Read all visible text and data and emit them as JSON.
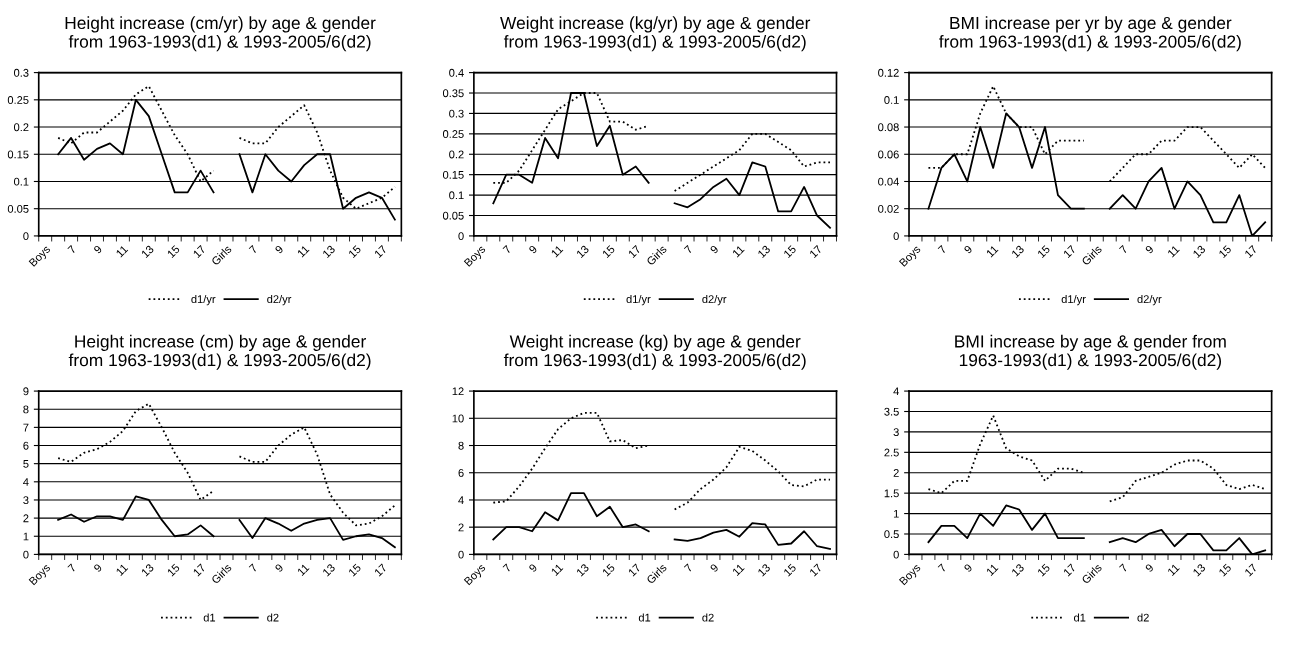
{
  "chart_data": [
    {
      "type": "line",
      "title": "Height increase (cm/yr) by age & gender\nfrom 1963-1993(d1) & 1993-2005/6(d2)",
      "categories": [
        "Boys",
        null,
        "7",
        null,
        "9",
        null,
        "11",
        null,
        "13",
        null,
        "15",
        null,
        "17",
        null,
        "Girls",
        null,
        "7",
        null,
        "9",
        null,
        "11",
        null,
        "13",
        null,
        "15",
        null,
        "17",
        null
      ],
      "series": [
        {
          "name": "d1/yr",
          "color": "#000000",
          "line_style": "dotted",
          "values": [
            null,
            0.18,
            0.17,
            0.19,
            0.19,
            0.21,
            0.23,
            0.26,
            0.275,
            0.23,
            0.185,
            0.15,
            0.1,
            0.12,
            null,
            0.18,
            0.17,
            0.17,
            0.2,
            0.22,
            0.24,
            0.19,
            0.12,
            0.07,
            0.05,
            0.06,
            0.07,
            0.09
          ]
        },
        {
          "name": "d2/yr",
          "color": "#000000",
          "line_style": "solid",
          "values": [
            null,
            0.15,
            0.18,
            0.14,
            0.16,
            0.17,
            0.15,
            0.25,
            0.22,
            0.15,
            0.08,
            0.08,
            0.12,
            0.08,
            null,
            0.15,
            0.08,
            0.15,
            0.12,
            0.1,
            0.13,
            0.15,
            0.15,
            0.05,
            0.07,
            0.08,
            0.07,
            0.03
          ]
        }
      ],
      "ylim": [
        0,
        0.3
      ],
      "yticks": [
        0,
        0.05,
        0.1,
        0.15,
        0.2,
        0.25,
        0.3
      ],
      "grid": "y",
      "legend": "bottom",
      "marker": "none"
    },
    {
      "type": "line",
      "title": "Weight increase (kg/yr) by age & gender\nfrom 1963-1993(d1) & 1993-2005/6(d2)",
      "categories": [
        "Boys",
        null,
        "7",
        null,
        "9",
        null,
        "11",
        null,
        "13",
        null,
        "15",
        null,
        "17",
        null,
        "Girls",
        null,
        "7",
        null,
        "9",
        null,
        "11",
        null,
        "13",
        null,
        "15",
        null,
        "17",
        null
      ],
      "series": [
        {
          "name": "d1/yr",
          "color": "#000000",
          "line_style": "dotted",
          "values": [
            null,
            0.13,
            0.13,
            0.16,
            0.21,
            0.26,
            0.31,
            0.33,
            0.35,
            0.35,
            0.28,
            0.28,
            0.26,
            0.27,
            null,
            0.11,
            0.13,
            0.15,
            0.17,
            0.19,
            0.21,
            0.25,
            0.25,
            0.23,
            0.21,
            0.17,
            0.18,
            0.18
          ]
        },
        {
          "name": "d2/yr",
          "color": "#000000",
          "line_style": "solid",
          "values": [
            null,
            0.08,
            0.15,
            0.15,
            0.13,
            0.24,
            0.19,
            0.35,
            0.35,
            0.22,
            0.27,
            0.15,
            0.17,
            0.13,
            null,
            0.08,
            0.07,
            0.09,
            0.12,
            0.14,
            0.1,
            0.18,
            0.17,
            0.06,
            0.06,
            0.12,
            0.05,
            0.02
          ]
        }
      ],
      "ylim": [
        0,
        0.4
      ],
      "yticks": [
        0,
        0.05,
        0.1,
        0.15,
        0.2,
        0.25,
        0.3,
        0.35,
        0.4
      ],
      "grid": "y",
      "legend": "bottom",
      "marker": "none"
    },
    {
      "type": "line",
      "title": "BMI increase per yr by age & gender\nfrom 1963-1993(d1) & 1993-2005/6(d2)",
      "categories": [
        "Boys",
        null,
        "7",
        null,
        "9",
        null,
        "11",
        null,
        "13",
        null,
        "15",
        null,
        "17",
        null,
        "Girls",
        null,
        "7",
        null,
        "9",
        null,
        "11",
        null,
        "13",
        null,
        "15",
        null,
        "17",
        null
      ],
      "series": [
        {
          "name": "d1/yr",
          "color": "#000000",
          "line_style": "dotted",
          "values": [
            null,
            0.05,
            0.05,
            0.06,
            0.06,
            0.09,
            0.11,
            0.09,
            0.08,
            0.08,
            0.06,
            0.07,
            0.07,
            0.07,
            null,
            0.04,
            0.05,
            0.06,
            0.06,
            0.07,
            0.07,
            0.08,
            0.08,
            0.07,
            0.06,
            0.05,
            0.06,
            0.05
          ]
        },
        {
          "name": "d2/yr",
          "color": "#000000",
          "line_style": "solid",
          "values": [
            null,
            0.02,
            0.05,
            0.06,
            0.04,
            0.08,
            0.05,
            0.09,
            0.08,
            0.05,
            0.08,
            0.03,
            0.02,
            0.02,
            null,
            0.02,
            0.03,
            0.02,
            0.04,
            0.05,
            0.02,
            0.04,
            0.03,
            0.01,
            0.01,
            0.03,
            0,
            0.01
          ]
        }
      ],
      "ylim": [
        0,
        0.12
      ],
      "yticks": [
        0,
        0.02,
        0.04,
        0.06,
        0.08,
        0.1,
        0.12
      ],
      "grid": "y",
      "legend": "bottom",
      "marker": "none"
    },
    {
      "type": "line",
      "title": "Height increase (cm) by age & gender\nfrom 1963-1993(d1) & 1993-2005/6(d2)",
      "categories": [
        "Boys",
        null,
        "7",
        null,
        "9",
        null,
        "11",
        null,
        "13",
        null,
        "15",
        null,
        "17",
        null,
        "Girls",
        null,
        "7",
        null,
        "9",
        null,
        "11",
        null,
        "13",
        null,
        "15",
        null,
        "17",
        null
      ],
      "series": [
        {
          "name": "d1",
          "color": "#000000",
          "line_style": "dotted",
          "values": [
            null,
            5.3,
            5.1,
            5.6,
            5.8,
            6.2,
            6.8,
            7.9,
            8.3,
            7.0,
            5.6,
            4.5,
            3.0,
            3.5,
            null,
            5.4,
            5.1,
            5.1,
            6.0,
            6.6,
            7.0,
            5.5,
            3.3,
            2.3,
            1.6,
            1.7,
            2.1,
            2.7
          ]
        },
        {
          "name": "d2",
          "color": "#000000",
          "line_style": "solid",
          "values": [
            null,
            1.9,
            2.2,
            1.8,
            2.1,
            2.1,
            1.9,
            3.2,
            3.0,
            1.9,
            1.0,
            1.1,
            1.6,
            1.0,
            null,
            1.9,
            0.9,
            2.0,
            1.7,
            1.3,
            1.7,
            1.9,
            2.0,
            0.8,
            1.0,
            1.1,
            0.9,
            0.4
          ]
        }
      ],
      "ylim": [
        0,
        9
      ],
      "yticks": [
        0,
        1,
        2,
        3,
        4,
        5,
        6,
        7,
        8,
        9
      ],
      "grid": "y",
      "legend": "bottom",
      "marker": "none"
    },
    {
      "type": "line",
      "title": "Weight increase (kg) by age & gender\nfrom 1963-1993(d1) & 1993-2005/6(d2)",
      "categories": [
        "Boys",
        null,
        "7",
        null,
        "9",
        null,
        "11",
        null,
        "13",
        null,
        "15",
        null,
        "17",
        null,
        "Girls",
        null,
        "7",
        null,
        "9",
        null,
        "11",
        null,
        "13",
        null,
        "15",
        null,
        "17",
        null
      ],
      "series": [
        {
          "name": "d1",
          "color": "#000000",
          "line_style": "dotted",
          "values": [
            null,
            3.8,
            3.9,
            5.0,
            6.3,
            7.8,
            9.2,
            10.0,
            10.4,
            10.4,
            8.3,
            8.4,
            7.8,
            8.0,
            null,
            3.3,
            3.8,
            4.8,
            5.5,
            6.4,
            7.9,
            7.6,
            6.9,
            6.1,
            5.1,
            5.0,
            5.5,
            5.5
          ]
        },
        {
          "name": "d2",
          "color": "#000000",
          "line_style": "solid",
          "values": [
            null,
            1.1,
            2.0,
            2.0,
            1.7,
            3.1,
            2.5,
            4.5,
            4.5,
            2.8,
            3.5,
            2.0,
            2.2,
            1.7,
            null,
            1.1,
            1.0,
            1.2,
            1.6,
            1.8,
            1.3,
            2.3,
            2.2,
            0.7,
            0.8,
            1.7,
            0.6,
            0.4
          ]
        }
      ],
      "ylim": [
        0,
        12
      ],
      "yticks": [
        0,
        2,
        4,
        6,
        8,
        10,
        12
      ],
      "grid": "y",
      "legend": "bottom",
      "marker": "none"
    },
    {
      "type": "line",
      "title": "BMI increase by age & gender from\n1963-1993(d1) & 1993-2005/6(d2)",
      "categories": [
        "Boys",
        null,
        "7",
        null,
        "9",
        null,
        "11",
        null,
        "13",
        null,
        "15",
        null,
        "17",
        null,
        "Girls",
        null,
        "7",
        null,
        "9",
        null,
        "11",
        null,
        "13",
        null,
        "15",
        null,
        "17",
        null
      ],
      "series": [
        {
          "name": "d1",
          "color": "#000000",
          "line_style": "dotted",
          "values": [
            null,
            1.6,
            1.5,
            1.8,
            1.8,
            2.7,
            3.4,
            2.6,
            2.4,
            2.3,
            1.8,
            2.1,
            2.1,
            2.0,
            null,
            1.3,
            1.4,
            1.8,
            1.9,
            2.0,
            2.2,
            2.3,
            2.3,
            2.1,
            1.7,
            1.6,
            1.7,
            1.6
          ]
        },
        {
          "name": "d2",
          "color": "#000000",
          "line_style": "solid",
          "values": [
            null,
            0.3,
            0.7,
            0.7,
            0.4,
            1.0,
            0.7,
            1.2,
            1.1,
            0.6,
            1.0,
            0.4,
            0.4,
            0.4,
            null,
            0.3,
            0.4,
            0.3,
            0.5,
            0.6,
            0.2,
            0.5,
            0.5,
            0.1,
            0.1,
            0.4,
            0.0,
            0.1
          ]
        }
      ],
      "ylim": [
        0,
        4
      ],
      "yticks": [
        0,
        0.5,
        1,
        1.5,
        2,
        2.5,
        3,
        3.5,
        4
      ],
      "grid": "y",
      "legend": "bottom",
      "marker": "none"
    }
  ]
}
